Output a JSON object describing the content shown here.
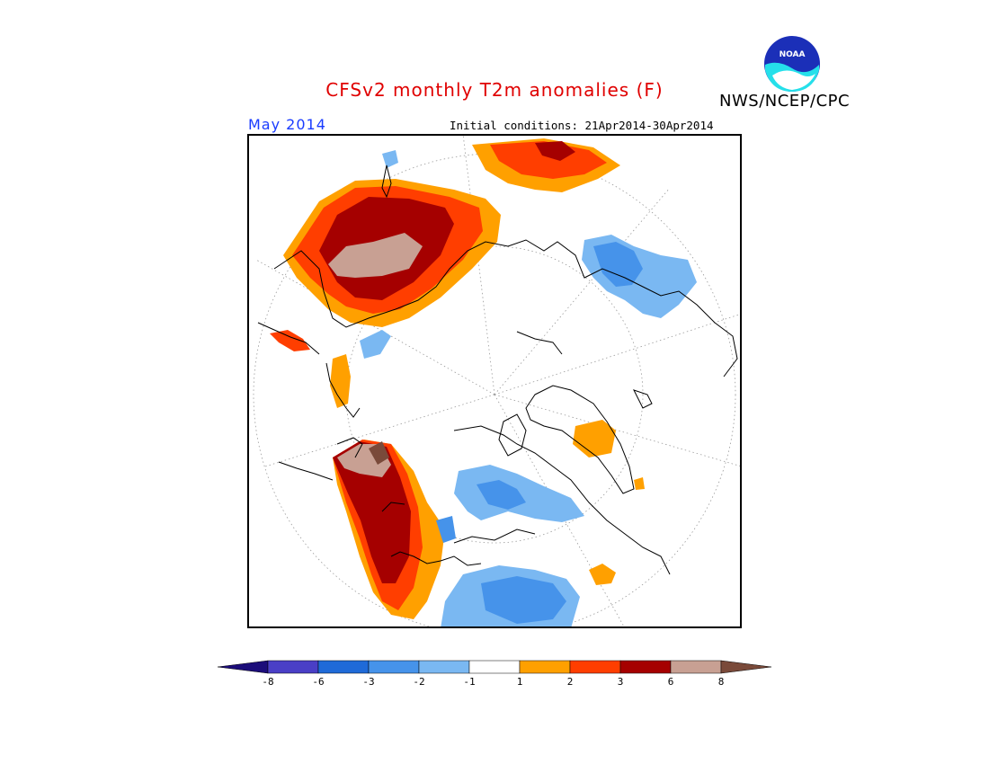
{
  "title": "CFSv2 monthly T2m anomalies (F)",
  "organization": "NWS/NCEP/CPC",
  "logo_text": "NOAA",
  "forecast_month": "May 2014",
  "initial_conditions": "Initial conditions: 21Apr2014-30Apr2014",
  "colorbar": {
    "tick_labels": [
      "-8",
      "-6",
      "-3",
      "-2",
      "-1",
      "1",
      "2",
      "3",
      "6",
      "8"
    ],
    "bin_colors": [
      "#1c0d7a",
      "#4a3fc6",
      "#1f6ad8",
      "#4693ea",
      "#7ab8f2",
      "#ffffff",
      "#ffa000",
      "#ff3e00",
      "#a50000",
      "#c8a093",
      "#7a4a3a"
    ]
  },
  "colors": {
    "title": "#e00000",
    "month_label": "#1a3cff",
    "land_outline": "#000000",
    "grid": "#9a9a9a"
  }
}
